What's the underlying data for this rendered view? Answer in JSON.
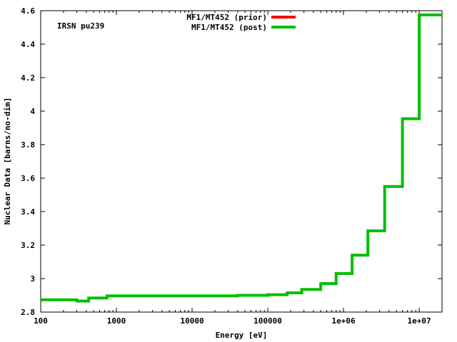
{
  "chart_data": {
    "type": "line",
    "title": "",
    "annotation": "IRSN pu239",
    "xlabel": "Energy [eV]",
    "ylabel": "Nuclear Data [barns/no-dim]",
    "xscale": "log",
    "xlim": [
      100,
      20000000
    ],
    "ylim": [
      2.8,
      4.6
    ],
    "grid": false,
    "legend_position": "top-center",
    "x_ticks": [
      100,
      1000,
      10000,
      100000,
      1000000,
      10000000
    ],
    "x_tick_labels": [
      "100",
      "1000",
      "10000",
      "100000",
      "1e+06",
      "1e+07"
    ],
    "y_ticks": [
      2.8,
      3.0,
      3.2,
      3.4,
      3.6,
      3.8,
      4.0,
      4.2,
      4.4,
      4.6
    ],
    "y_tick_labels": [
      "2.8",
      "3",
      "3.2",
      "3.4",
      "3.6",
      "3.8",
      "4",
      "4.2",
      "4.4",
      "4.6"
    ],
    "bin_edges": [
      100,
      300,
      430,
      750,
      40000,
      100000,
      180000,
      280000,
      500000,
      800000,
      1300000,
      2100000,
      3500000,
      6000000,
      10000000,
      20000000
    ],
    "series": [
      {
        "name": "MF1/MT452 (prior)",
        "color": "#ff0000",
        "values": [
          2.873,
          2.866,
          2.884,
          2.897,
          2.9,
          2.904,
          2.915,
          2.935,
          2.97,
          3.03,
          3.14,
          3.285,
          3.55,
          3.955,
          4.575
        ]
      },
      {
        "name": "MF1/MT452 (post)",
        "color": "#00c000",
        "values": [
          2.873,
          2.866,
          2.884,
          2.897,
          2.9,
          2.904,
          2.915,
          2.935,
          2.97,
          3.03,
          3.14,
          3.285,
          3.55,
          3.955,
          4.575
        ]
      }
    ]
  }
}
